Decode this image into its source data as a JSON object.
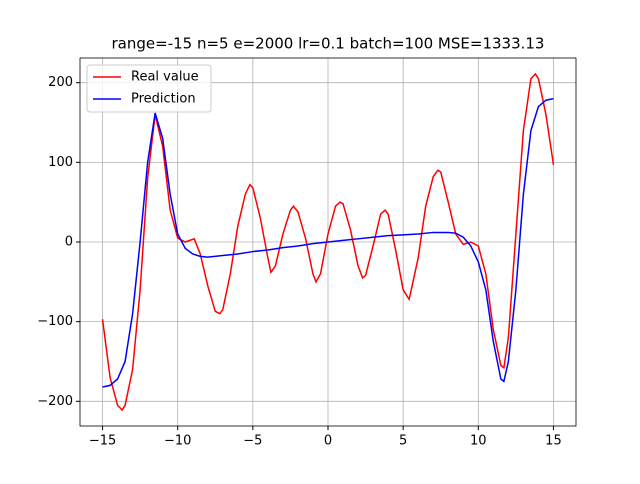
{
  "chart_data": {
    "type": "line",
    "title": "range=-15 n=5 e=2000 lr=0.1 batch=100 MSE=1333.13",
    "xlim": [
      -16.5,
      16.5
    ],
    "ylim": [
      -231,
      231
    ],
    "xticks": [
      {
        "value": -15,
        "label": "−15"
      },
      {
        "value": -10,
        "label": "−10"
      },
      {
        "value": -5,
        "label": "−5"
      },
      0,
      5,
      10,
      15
    ],
    "yticks": [
      {
        "value": -200,
        "label": "−200"
      },
      {
        "value": -100,
        "label": "−100"
      },
      0,
      100,
      200
    ],
    "grid": true,
    "legend": "upper left",
    "series": [
      {
        "name": "Real value",
        "color": "#ff0000",
        "x": [
          -15,
          -14.5,
          -14,
          -13.7,
          -13.5,
          -13,
          -12.5,
          -12,
          -11.5,
          -11,
          -10.5,
          -10,
          -9.5,
          -8.9,
          -8.5,
          -8,
          -7.5,
          -7.2,
          -7,
          -6.5,
          -6,
          -5.5,
          -5.2,
          -5,
          -4.5,
          -4,
          -3.8,
          -3.5,
          -3,
          -2.5,
          -2.3,
          -2,
          -1.5,
          -1,
          -0.8,
          -0.5,
          0,
          0.5,
          0.8,
          1,
          1.5,
          2,
          2.3,
          2.5,
          3,
          3.5,
          3.8,
          4,
          4.5,
          5,
          5.4,
          6,
          6.5,
          7,
          7.3,
          7.5,
          8,
          8.5,
          9,
          9.5,
          10,
          10.5,
          11,
          11.5,
          11.7,
          12,
          12.5,
          13,
          13.5,
          13.8,
          14,
          14.5,
          15
        ],
        "values": [
          -97,
          -170,
          -205,
          -211,
          -205,
          -160,
          -60,
          80,
          160,
          120,
          40,
          5,
          0,
          4,
          -15,
          -55,
          -87,
          -90,
          -85,
          -40,
          20,
          60,
          72,
          68,
          30,
          -20,
          -38,
          -30,
          10,
          40,
          45,
          38,
          5,
          -40,
          -50,
          -40,
          10,
          45,
          50,
          48,
          15,
          -30,
          -45,
          -42,
          -5,
          35,
          40,
          35,
          -10,
          -60,
          -72,
          -20,
          45,
          82,
          90,
          88,
          50,
          10,
          -3,
          0,
          -5,
          -40,
          -110,
          -155,
          -158,
          -120,
          10,
          140,
          205,
          211,
          205,
          160,
          97
        ]
      },
      {
        "name": "Prediction",
        "color": "#0000ff",
        "x": [
          -15,
          -14.5,
          -14,
          -13.5,
          -13,
          -12.5,
          -12,
          -11.5,
          -11,
          -10.5,
          -10,
          -9.5,
          -9,
          -8.5,
          -8,
          -7,
          -6,
          -5,
          -4,
          -3,
          -2,
          -1,
          0,
          1,
          2,
          3,
          4,
          5,
          6,
          7,
          8,
          8.5,
          9,
          9.5,
          10,
          10.5,
          11,
          11.5,
          11.7,
          12,
          12.5,
          13,
          13.5,
          14,
          14.5,
          15
        ],
        "values": [
          -182,
          -180,
          -172,
          -150,
          -90,
          0,
          100,
          162,
          130,
          60,
          10,
          -8,
          -15,
          -18,
          -19,
          -17,
          -15,
          -12,
          -10,
          -7,
          -5,
          -2,
          0,
          2,
          4,
          6,
          8,
          9,
          10,
          12,
          12,
          11,
          6,
          -5,
          -25,
          -60,
          -125,
          -172,
          -175,
          -150,
          -60,
          60,
          140,
          170,
          178,
          180
        ]
      }
    ]
  }
}
